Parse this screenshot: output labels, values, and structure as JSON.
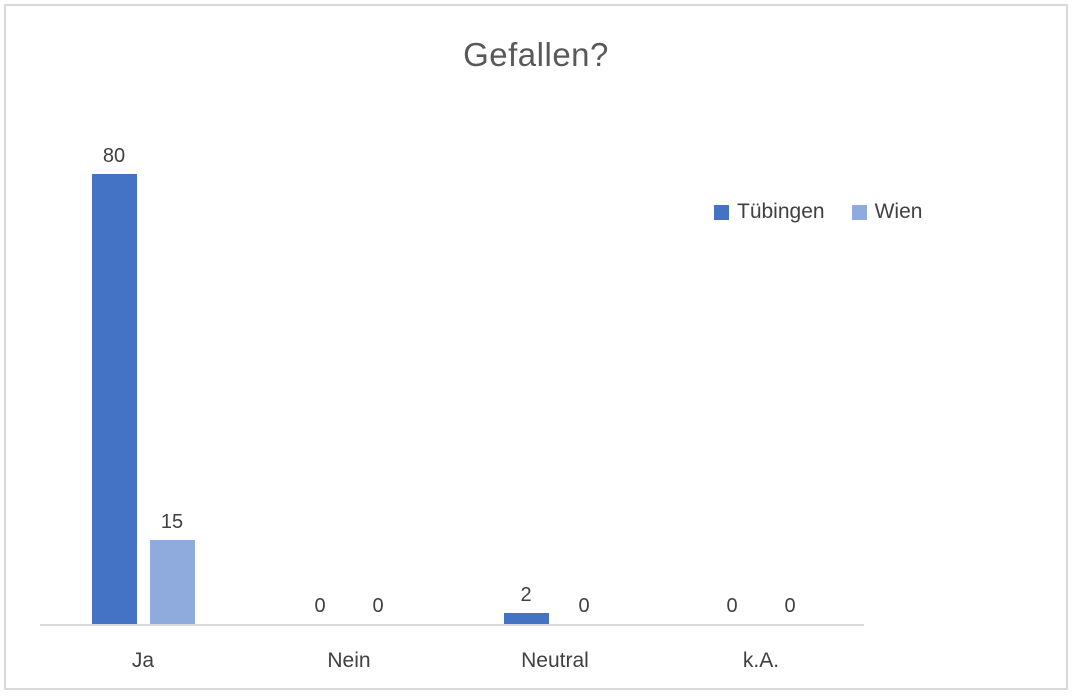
{
  "chart_data": {
    "type": "bar",
    "title": "Gefallen?",
    "categories": [
      "Ja",
      "Nein",
      "Neutral",
      "k.A."
    ],
    "series": [
      {
        "name": "Tübingen",
        "color": "#4472C4",
        "values": [
          80,
          0,
          2,
          0
        ]
      },
      {
        "name": "Wien",
        "color": "#8FAADC",
        "values": [
          15,
          0,
          0,
          0
        ]
      }
    ],
    "ylim": [
      0,
      80
    ],
    "data_labels": [
      [
        "80",
        "0",
        "2",
        "0"
      ],
      [
        "15",
        "0",
        "0",
        "0"
      ]
    ],
    "legend_position": "right",
    "grid": false,
    "colors": {
      "axis_line": "#D9D9D9",
      "frame_border": "#D9D9D9",
      "title_text": "#595959",
      "label_text": "#404040",
      "background": "#FFFFFF"
    }
  }
}
